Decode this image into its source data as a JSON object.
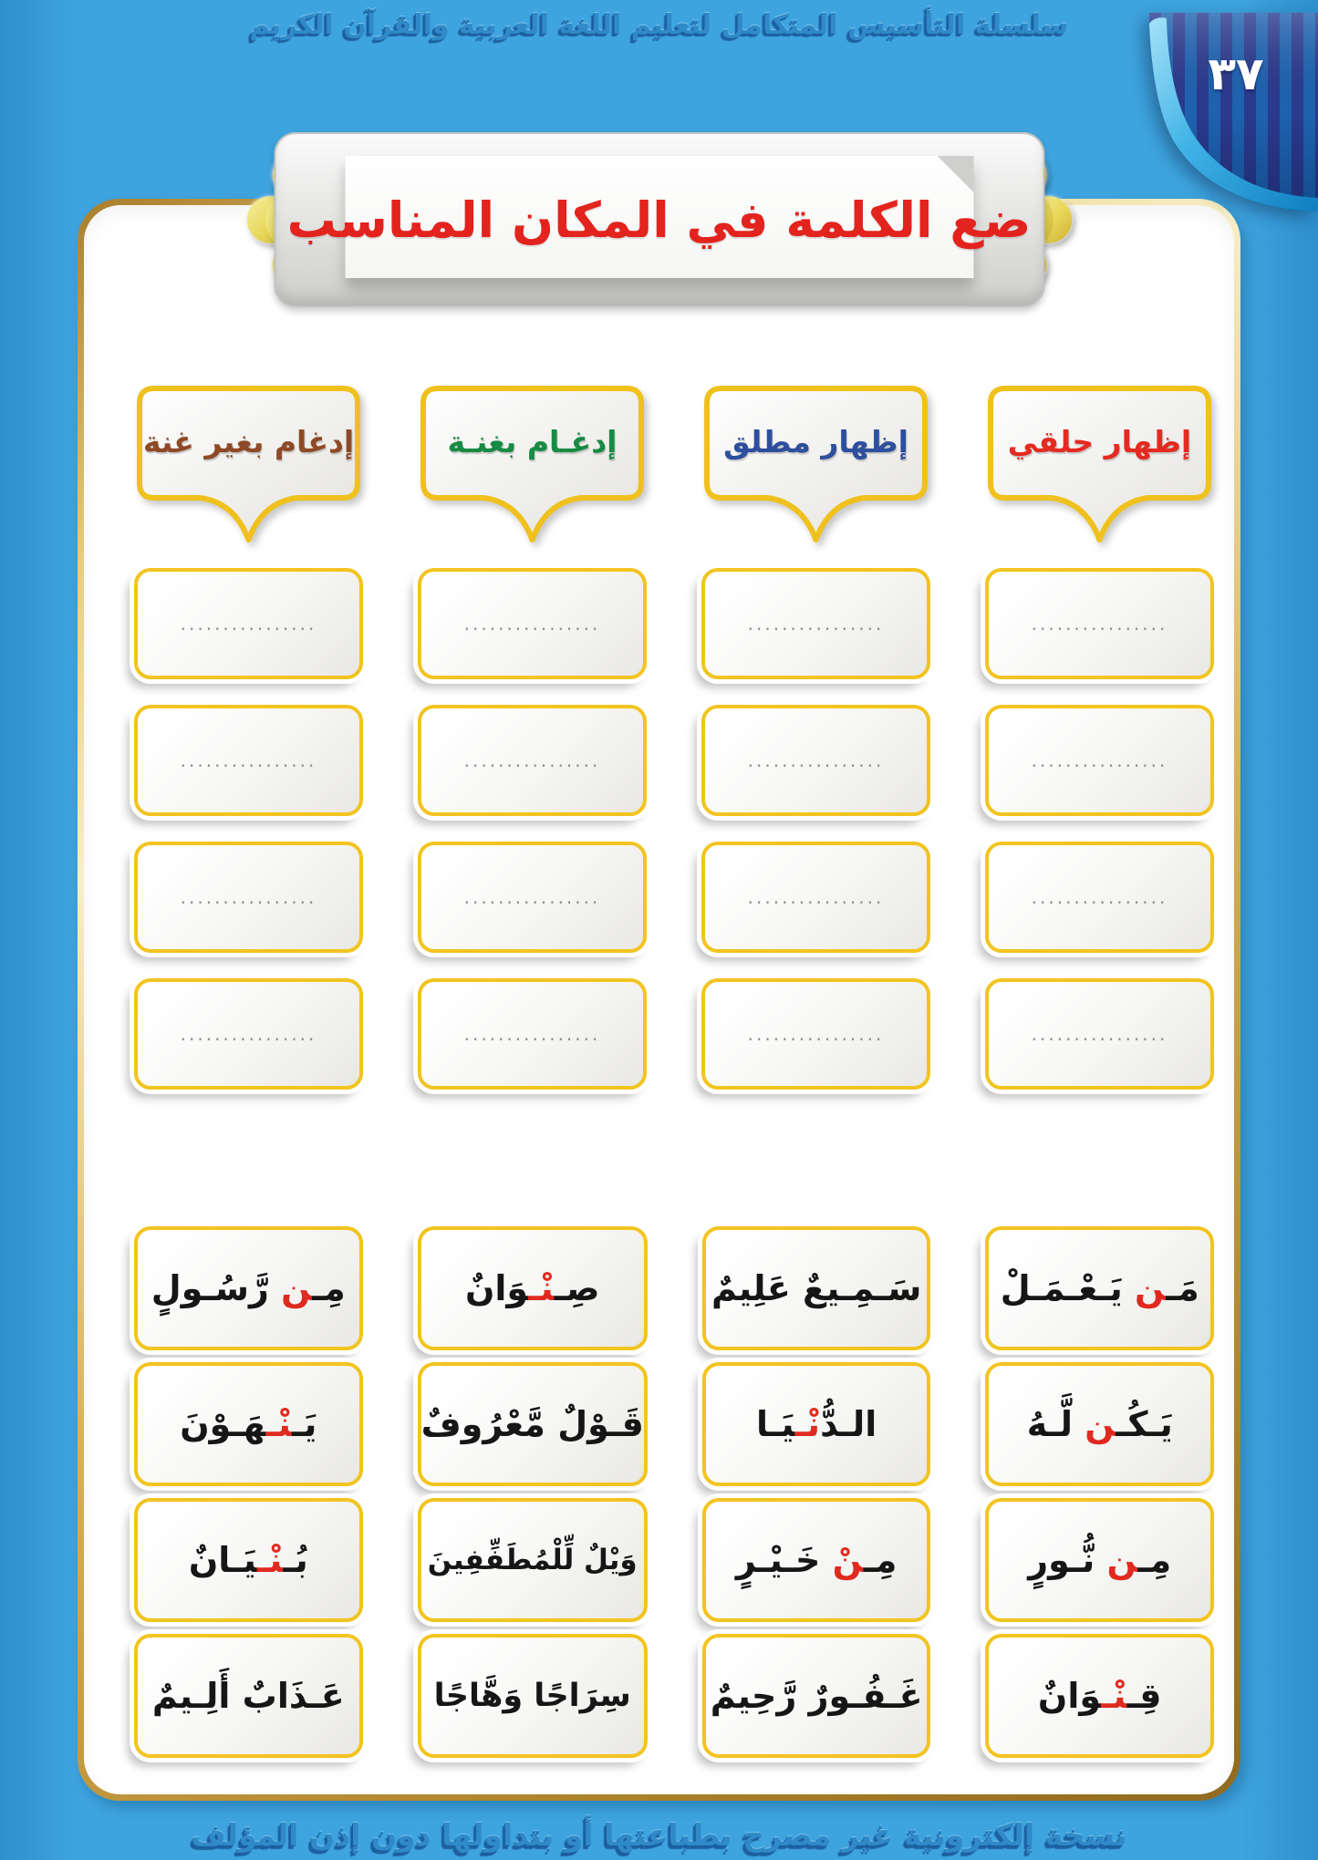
{
  "page": {
    "header_series_title": "سلسلة التأسيس المتكامل لتعليم اللغة العربية والقرآن الكريم",
    "page_number": "٣٧",
    "footer_notice": "نسخة إلكترونية غير مصرح بطباعتها أو بتداولها دون إذن المؤلف"
  },
  "title_banner": {
    "text": "ضع الكلمة في المكان المناسب",
    "color": "#e3231d"
  },
  "columns": [
    {
      "id": "izhar-halqi",
      "label": "إظهار حلقي",
      "color": "#e52a21"
    },
    {
      "id": "izhar-mutlaq",
      "label": "إظهار مطلق",
      "color": "#2d4f9e"
    },
    {
      "id": "idgham-bighunnah",
      "label": "إدغـام بغنـة",
      "color": "#178b43"
    },
    {
      "id": "idgham-bighayr-ghunnah",
      "label": "إدغام بغير غنة",
      "color": "#8e4a26"
    }
  ],
  "answer_boxes": {
    "rows": 4,
    "placeholder": "................"
  },
  "word_cards": {
    "rows": [
      [
        {
          "segments": [
            {
              "t": "مَـ"
            },
            {
              "t": "ن",
              "red": true
            },
            {
              "t": " يَـعْـمَـلْ"
            }
          ]
        },
        {
          "segments": [
            {
              "t": "سَـمِـيع"
            },
            {
              "t": "ٌ",
              "red": true
            },
            {
              "t": " عَلِيمٌ"
            }
          ]
        },
        {
          "segments": [
            {
              "t": "صِـ"
            },
            {
              "t": "نْـ",
              "red": true
            },
            {
              "t": "وَانٌ"
            }
          ]
        },
        {
          "segments": [
            {
              "t": "مِـ"
            },
            {
              "t": "ن",
              "red": true
            },
            {
              "t": " رَّسُـولٍ"
            }
          ]
        }
      ],
      [
        {
          "segments": [
            {
              "t": "يَـكُـ"
            },
            {
              "t": "ن",
              "red": true
            },
            {
              "t": " لَّـهُ"
            }
          ]
        },
        {
          "segments": [
            {
              "t": "الـدُّ"
            },
            {
              "t": "نْـ",
              "red": true
            },
            {
              "t": "يَـا"
            }
          ]
        },
        {
          "segments": [
            {
              "t": "قَـوْل"
            },
            {
              "t": "ٌ",
              "red": true
            },
            {
              "t": " مَّعْرُوفٌ"
            }
          ]
        },
        {
          "segments": [
            {
              "t": "يَـ"
            },
            {
              "t": "نْـ",
              "red": true
            },
            {
              "t": "هَـوْنَ"
            }
          ]
        }
      ],
      [
        {
          "segments": [
            {
              "t": "مِـ"
            },
            {
              "t": "ن",
              "red": true
            },
            {
              "t": " نُّـورٍ"
            }
          ]
        },
        {
          "segments": [
            {
              "t": "مِـ"
            },
            {
              "t": "نْ",
              "red": true
            },
            {
              "t": " خَـيْـرٍ"
            }
          ]
        },
        {
          "segments": [
            {
              "t": "وَيْل"
            },
            {
              "t": "ٌ",
              "red": true
            },
            {
              "t": " لِّلْمُطَفِّفِينَ"
            }
          ]
        },
        {
          "segments": [
            {
              "t": "بُـ"
            },
            {
              "t": "نْـ",
              "red": true
            },
            {
              "t": "يَـانٌ"
            }
          ]
        }
      ],
      [
        {
          "segments": [
            {
              "t": "قِـ"
            },
            {
              "t": "نْـ",
              "red": true
            },
            {
              "t": "وَانٌ"
            }
          ]
        },
        {
          "segments": [
            {
              "t": "غَـفُـور"
            },
            {
              "t": "ٌ",
              "red": true
            },
            {
              "t": " رَّحِيمٌ"
            }
          ]
        },
        {
          "segments": [
            {
              "t": "سِرَاج"
            },
            {
              "t": "ً",
              "red": true
            },
            {
              "t": "ا وَهَّاجًا"
            }
          ]
        },
        {
          "segments": [
            {
              "t": "عَـذَاب"
            },
            {
              "t": "ٌ",
              "red": true
            },
            {
              "t": " أَلِـيمٌ"
            }
          ]
        }
      ]
    ]
  },
  "colors": {
    "background_blue": "#3ea4df",
    "gold_frame": "#c99b3a",
    "accent_yellow": "#f2c41f",
    "tajweed_red": "#e02a1f",
    "title_red": "#e3231d",
    "decorative_text_blue": "#2f8ac7",
    "ink_black": "#161616",
    "corner_navy": "#2b3a8d",
    "corner_blue": "#1e63b0",
    "curl_blue": "#3fb2e6"
  }
}
